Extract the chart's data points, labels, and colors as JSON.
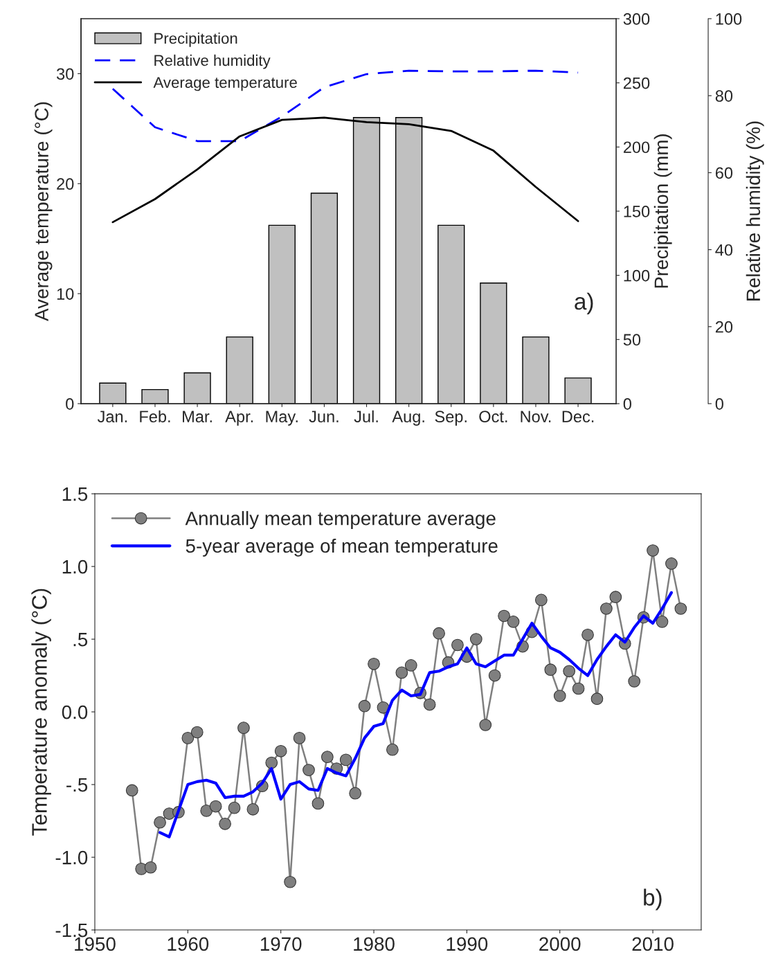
{
  "chart_data": [
    {
      "type": "bar",
      "categories": [
        "Jan.",
        "Feb.",
        "Mar.",
        "Apr.",
        "May.",
        "Jun.",
        "Jul.",
        "Aug.",
        "Sep.",
        "Oct.",
        "Nov.",
        "Dec."
      ],
      "ylabel": "Average temperature (°C)",
      "y2label": "Precipitation (mm)",
      "y3label": "Relative humidity (%)",
      "ylim": [
        0,
        35
      ],
      "yticks": [
        0,
        10,
        20,
        30
      ],
      "y2lim": [
        0,
        300
      ],
      "y2ticks": [
        0,
        50,
        100,
        150,
        200,
        250,
        300
      ],
      "y3lim": [
        0,
        100
      ],
      "y3ticks": [
        0,
        20,
        40,
        60,
        80,
        100
      ],
      "grid": false,
      "legend": "top left",
      "annotations": [
        "a)"
      ],
      "series": [
        {
          "name": "Precipitation",
          "type": "bar",
          "axis": "y2",
          "color": "#c0c0c0",
          "values": [
            16,
            11,
            24,
            52,
            139,
            164,
            223,
            223,
            139,
            94,
            52,
            20
          ]
        },
        {
          "name": "Relative humidity",
          "type": "line",
          "axis": "y3",
          "color": "#0000ff",
          "line_style": "dashed",
          "values": [
            81.8,
            71.8,
            68.2,
            68.2,
            74.6,
            82.2,
            85.6,
            86.5,
            86.3,
            86.3,
            86.5,
            86.0
          ]
        },
        {
          "name": "Average temperature",
          "type": "line",
          "axis": "y",
          "color": "#000000",
          "line_style": "solid",
          "values": [
            16.5,
            18.6,
            21.3,
            24.3,
            25.8,
            26.0,
            25.6,
            25.4,
            24.8,
            23.0,
            19.7,
            16.6
          ]
        }
      ]
    },
    {
      "type": "line",
      "ylabel": "Temperature anomaly (°C)",
      "xlim": [
        1950,
        2015.2
      ],
      "xticks": [
        1950,
        1960,
        1970,
        1980,
        1990,
        2000,
        2010
      ],
      "ylim": [
        -1.5,
        1.5
      ],
      "yticks": [
        {
          "value": -1.5,
          "label": "-1.5"
        },
        {
          "value": -1.0,
          "label": "-1.0"
        },
        {
          "value": -0.5,
          "label": "-.5"
        },
        {
          "value": 0,
          "label": "0.0"
        },
        {
          "value": 0.5,
          "label": ".5"
        },
        {
          "value": 1.0,
          "label": "1.0"
        },
        {
          "value": 1.5,
          "label": "1.5"
        }
      ],
      "grid": false,
      "legend": "top left",
      "annotations": [
        "b)"
      ],
      "series": [
        {
          "name": "Annually mean temperature average",
          "color": "#7f7f7f",
          "marker": "circle",
          "line_style": "solid",
          "x": [
            1954,
            1955,
            1956,
            1957,
            1958,
            1959,
            1960,
            1961,
            1962,
            1963,
            1964,
            1965,
            1966,
            1967,
            1968,
            1969,
            1970,
            1971,
            1972,
            1973,
            1974,
            1975,
            1976,
            1977,
            1978,
            1979,
            1980,
            1981,
            1982,
            1983,
            1984,
            1985,
            1986,
            1987,
            1988,
            1989,
            1990,
            1991,
            1992,
            1993,
            1994,
            1995,
            1996,
            1997,
            1998,
            1999,
            2000,
            2001,
            2002,
            2003,
            2004,
            2005,
            2006,
            2007,
            2008,
            2009,
            2010,
            2011,
            2012,
            2013
          ],
          "values": [
            -0.54,
            -1.08,
            -1.07,
            -0.76,
            -0.7,
            -0.69,
            -0.18,
            -0.14,
            -0.68,
            -0.65,
            -0.77,
            -0.66,
            -0.11,
            -0.67,
            -0.51,
            -0.35,
            -0.27,
            -1.17,
            -0.18,
            -0.4,
            -0.63,
            -0.31,
            -0.39,
            -0.33,
            -0.56,
            0.04,
            0.33,
            0.03,
            -0.26,
            0.27,
            0.32,
            0.13,
            0.05,
            0.54,
            0.34,
            0.46,
            0.38,
            0.5,
            -0.09,
            0.25,
            0.66,
            0.62,
            0.45,
            0.55,
            0.77,
            0.29,
            0.11,
            0.28,
            0.16,
            0.53,
            0.09,
            0.71,
            0.79,
            0.47,
            0.21,
            0.65,
            1.11,
            0.62,
            1.02,
            0.71
          ]
        },
        {
          "name": "5-year average of mean temperature",
          "color": "#0000ff",
          "marker": "none",
          "line_style": "solid",
          "x": [
            1957,
            1958,
            1959,
            1960,
            1961,
            1962,
            1963,
            1964,
            1965,
            1966,
            1967,
            1968,
            1969,
            1970,
            1971,
            1972,
            1973,
            1974,
            1975,
            1976,
            1977,
            1978,
            1979,
            1980,
            1981,
            1982,
            1983,
            1984,
            1985,
            1986,
            1987,
            1988,
            1989,
            1990,
            1991,
            1992,
            1993,
            1994,
            1995,
            1996,
            1997,
            1998,
            1999,
            2000,
            2001,
            2002,
            2003,
            2004,
            2005,
            2006,
            2007,
            2008,
            2009,
            2010,
            2011,
            2012
          ],
          "values": [
            -0.83,
            -0.86,
            -0.68,
            -0.5,
            -0.48,
            -0.47,
            -0.49,
            -0.59,
            -0.58,
            -0.58,
            -0.55,
            -0.49,
            -0.39,
            -0.6,
            -0.5,
            -0.48,
            -0.53,
            -0.54,
            -0.39,
            -0.42,
            -0.44,
            -0.32,
            -0.18,
            -0.1,
            -0.08,
            0.08,
            0.15,
            0.11,
            0.12,
            0.27,
            0.28,
            0.31,
            0.33,
            0.44,
            0.33,
            0.31,
            0.35,
            0.39,
            0.39,
            0.5,
            0.61,
            0.52,
            0.44,
            0.41,
            0.36,
            0.3,
            0.25,
            0.36,
            0.45,
            0.53,
            0.48,
            0.58,
            0.66,
            0.61,
            0.71,
            0.82
          ]
        }
      ]
    }
  ]
}
